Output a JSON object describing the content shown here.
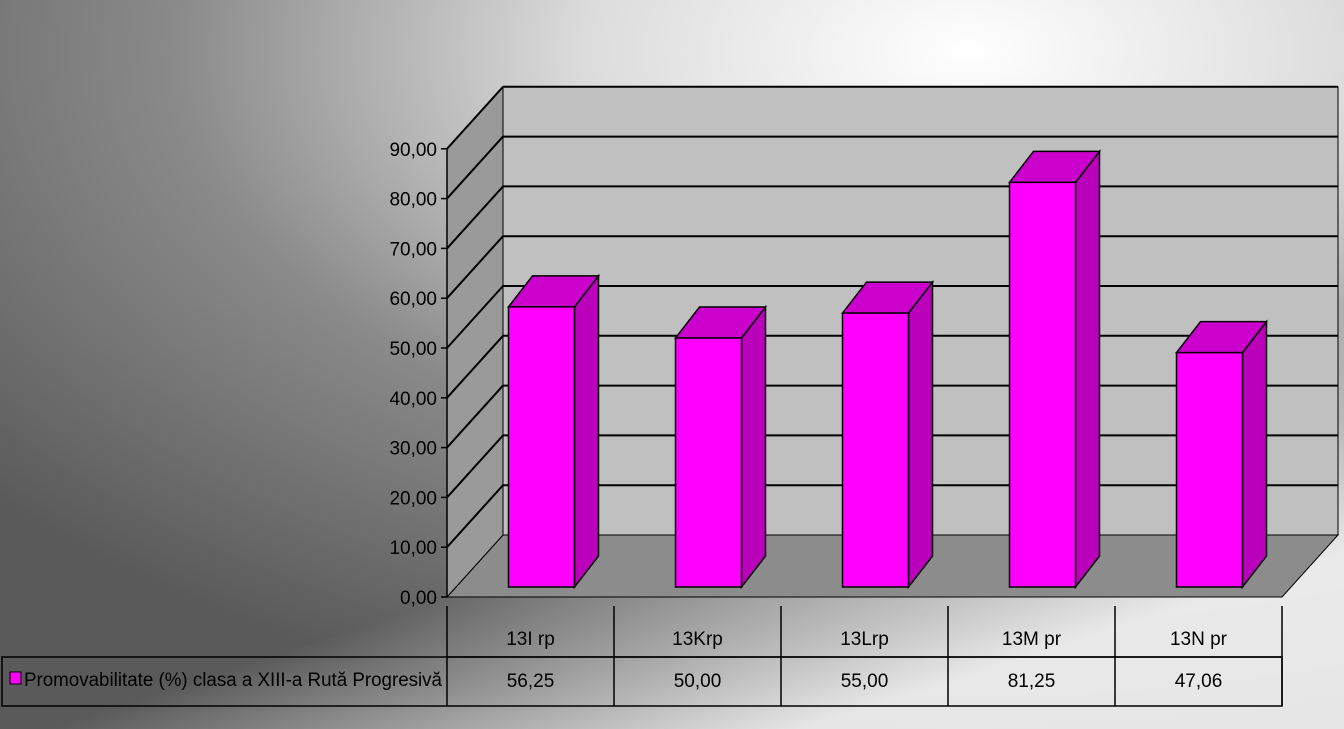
{
  "chart_data": {
    "type": "bar",
    "style": "3d-column-with-data-table",
    "categories": [
      "13I rp",
      "13Krp",
      "13Lrp",
      "13M pr",
      "13N pr"
    ],
    "series": [
      {
        "name": "Promovabilitate (%) clasa a XIII-a Rută Progresivă",
        "values": [
          56.25,
          50.0,
          55.0,
          81.25,
          47.06
        ],
        "value_labels": [
          "56,25",
          "50,00",
          "55,00",
          "81,25",
          "47,06"
        ],
        "color": "#ff00ff"
      }
    ],
    "y_tick_labels": [
      "0,00",
      "10,00",
      "20,00",
      "30,00",
      "40,00",
      "50,00",
      "60,00",
      "70,00",
      "80,00",
      "90,00"
    ],
    "ylim": [
      0,
      90
    ],
    "y_step": 10,
    "grid": true,
    "legend": "data-table-left",
    "title": "",
    "xlabel": "",
    "ylabel": "",
    "colors": {
      "bar_front": "#ff00ff",
      "bar_side": "#bb00bb",
      "bar_top": "#cc00cc",
      "back_wall": "#c0c0c0",
      "side_wall": "#9a9a9a",
      "floor": "#8c8c8c",
      "grid": "#000000"
    }
  }
}
